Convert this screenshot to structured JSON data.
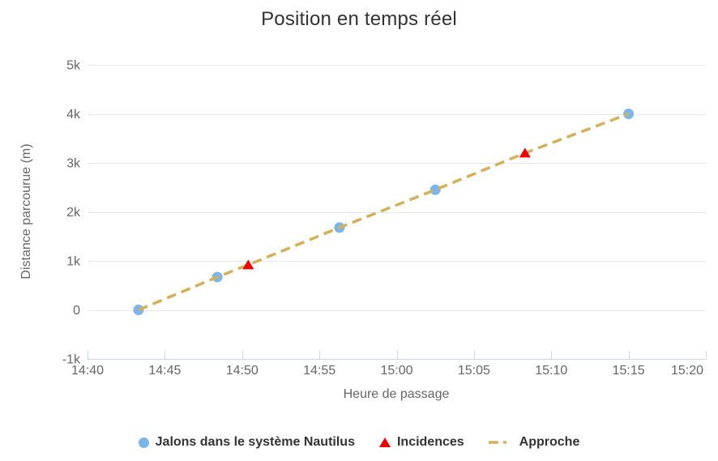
{
  "chart_data": {
    "type": "scatter",
    "title": "Position en temps réel",
    "legend_position": "bottom",
    "x_axis": {
      "title": "Heure de passage",
      "unit": "minutes after 14:40",
      "range": [
        0,
        40
      ],
      "tick_interval": 5,
      "ticks": [
        {
          "value": 0,
          "label": "14:40"
        },
        {
          "value": 5,
          "label": "14:45"
        },
        {
          "value": 10,
          "label": "14:50"
        },
        {
          "value": 15,
          "label": "14:55"
        },
        {
          "value": 20,
          "label": "15:00"
        },
        {
          "value": 25,
          "label": "15:05"
        },
        {
          "value": 30,
          "label": "15:10"
        },
        {
          "value": 35,
          "label": "15:15"
        },
        {
          "value": 40,
          "label": "15:20"
        }
      ]
    },
    "y_axis": {
      "title": "Distance parcourue (m)",
      "range": [
        -1000,
        5000
      ],
      "tick_interval": 1000,
      "ticks": [
        {
          "value": 5000,
          "label": "5k"
        },
        {
          "value": 4000,
          "label": "4k"
        },
        {
          "value": 3000,
          "label": "3k"
        },
        {
          "value": 2000,
          "label": "2k"
        },
        {
          "value": 1000,
          "label": "1k"
        },
        {
          "value": 0,
          "label": "0"
        },
        {
          "value": -1000,
          "label": "-1k"
        }
      ],
      "grid": true
    },
    "series": [
      {
        "name": "Jalons dans le système Nautilus",
        "type": "scatter",
        "marker": "circle",
        "color": "#7cb5ec",
        "points": [
          {
            "x_min": 3.3,
            "distance": 0
          },
          {
            "x_min": 8.4,
            "distance": 670
          },
          {
            "x_min": 16.3,
            "distance": 1680
          },
          {
            "x_min": 22.5,
            "distance": 2450
          },
          {
            "x_min": 35.0,
            "distance": 4000
          }
        ]
      },
      {
        "name": "Incidences",
        "type": "scatter",
        "marker": "triangle",
        "color": "#f00000",
        "points": [
          {
            "x_min": 10.4,
            "distance": 920
          },
          {
            "x_min": 28.3,
            "distance": 3200
          }
        ]
      },
      {
        "name": "Approche",
        "type": "line",
        "dashed": true,
        "color": "#d4b158",
        "points": [
          {
            "x_min": 3.3,
            "distance": 0
          },
          {
            "x_min": 8.4,
            "distance": 670
          },
          {
            "x_min": 10.4,
            "distance": 920
          },
          {
            "x_min": 16.3,
            "distance": 1680
          },
          {
            "x_min": 22.5,
            "distance": 2450
          },
          {
            "x_min": 28.3,
            "distance": 3200
          },
          {
            "x_min": 35.0,
            "distance": 4000
          }
        ]
      }
    ],
    "palette": {
      "title_text": "#333333",
      "tick_label": "#666666",
      "axis_title_text": "#666666",
      "legend_text": "#333333",
      "grid_line": "#e6e6e6",
      "axis_line": "#ccd6eb",
      "background": "#ffffff"
    }
  }
}
